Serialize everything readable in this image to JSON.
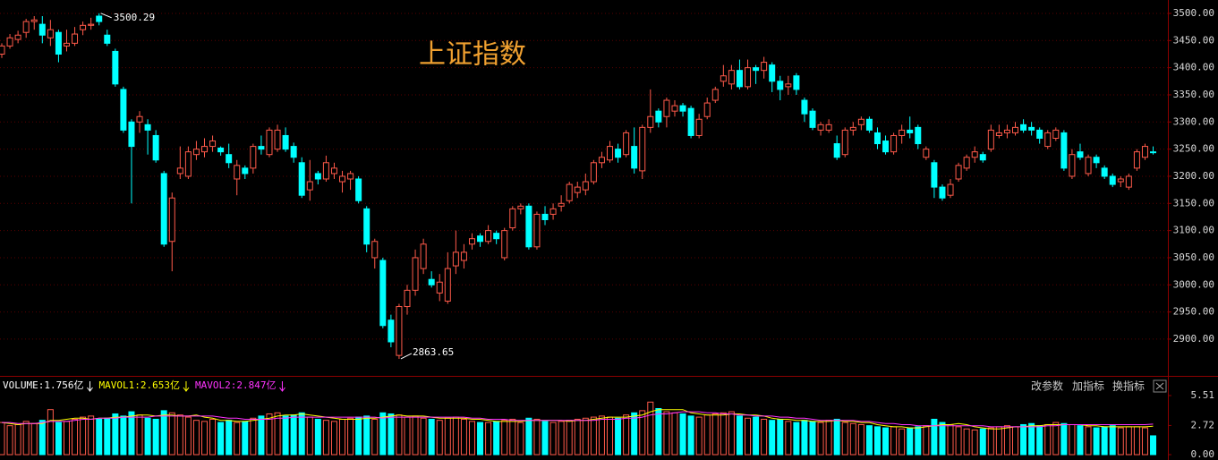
{
  "chart_data": [
    {
      "type": "candlestick",
      "title": "上证指数",
      "up_color": "#ff5a4a",
      "down_color": "#00ffff",
      "open": [
        3425,
        3440,
        3452,
        3465,
        3485,
        3480,
        3455,
        3465,
        3440,
        3445,
        3470,
        3478,
        3495,
        3460,
        3430,
        3360,
        3300,
        3300,
        3295,
        3275,
        3205,
        3080,
        3205,
        3200,
        3240,
        3245,
        3255,
        3252,
        3240,
        3195,
        3215,
        3215,
        3255,
        3240,
        3250,
        3275,
        3255,
        3225,
        3175,
        3205,
        3195,
        3205,
        3190,
        3195,
        3195,
        3140,
        3050,
        3045,
        2935,
        2870,
        2960,
        2990,
        3030,
        3010,
        2985,
        2970,
        3035,
        3045,
        3075,
        3090,
        3080,
        3095,
        3050,
        3105,
        3140,
        3145,
        3070,
        3130,
        3130,
        3145,
        3155,
        3170,
        3175,
        3190,
        3225,
        3230,
        3250,
        3240,
        3255,
        3210,
        3290,
        3320,
        3310,
        3320,
        3330,
        3325,
        3275,
        3310,
        3340,
        3375,
        3370,
        3395,
        3365,
        3400,
        3395,
        3405,
        3375,
        3365,
        3385,
        3340,
        3320,
        3285,
        3285,
        3260,
        3240,
        3285,
        3295,
        3305,
        3280,
        3265,
        3245,
        3275,
        3285,
        3290,
        3235,
        3225,
        3180,
        3165,
        3195,
        3215,
        3235,
        3240,
        3250,
        3275,
        3280,
        3280,
        3295,
        3290,
        3285,
        3255,
        3270,
        3280,
        3200,
        3245,
        3205,
        3235,
        3215,
        3200,
        3190,
        3180,
        3215,
        3235,
        3245
      ],
      "high": [
        3445,
        3462,
        3468,
        3490,
        3495,
        3495,
        3488,
        3470,
        3470,
        3475,
        3485,
        3492,
        3500.29,
        3470,
        3435,
        3365,
        3305,
        3320,
        3305,
        3285,
        3210,
        3170,
        3255,
        3255,
        3265,
        3270,
        3275,
        3255,
        3260,
        3230,
        3220,
        3260,
        3275,
        3290,
        3295,
        3290,
        3262,
        3235,
        3230,
        3210,
        3238,
        3225,
        3210,
        3210,
        3200,
        3145,
        3085,
        3050,
        2945,
        2965,
        3000,
        3065,
        3085,
        3025,
        3020,
        3060,
        3100,
        3075,
        3095,
        3095,
        3110,
        3100,
        3105,
        3145,
        3150,
        3150,
        3135,
        3145,
        3150,
        3165,
        3190,
        3190,
        3205,
        3230,
        3245,
        3265,
        3260,
        3285,
        3290,
        3295,
        3360,
        3325,
        3345,
        3340,
        3335,
        3330,
        3315,
        3345,
        3365,
        3405,
        3405,
        3415,
        3415,
        3405,
        3420,
        3410,
        3385,
        3385,
        3390,
        3345,
        3325,
        3300,
        3305,
        3275,
        3290,
        3300,
        3310,
        3310,
        3290,
        3275,
        3280,
        3295,
        3310,
        3295,
        3255,
        3230,
        3185,
        3195,
        3225,
        3240,
        3255,
        3245,
        3295,
        3295,
        3295,
        3300,
        3305,
        3300,
        3290,
        3285,
        3290,
        3285,
        3250,
        3260,
        3240,
        3240,
        3220,
        3205,
        3200,
        3205,
        3250,
        3260,
        3255
      ],
      "low": [
        3418,
        3435,
        3445,
        3455,
        3470,
        3445,
        3440,
        3410,
        3430,
        3440,
        3460,
        3470,
        3478,
        3440,
        3365,
        3280,
        3150,
        3280,
        3240,
        3225,
        3070,
        3025,
        3195,
        3195,
        3230,
        3235,
        3245,
        3238,
        3215,
        3165,
        3195,
        3205,
        3240,
        3235,
        3245,
        3245,
        3225,
        3160,
        3155,
        3185,
        3190,
        3195,
        3170,
        3175,
        3150,
        3060,
        3030,
        2920,
        2885,
        2863.65,
        2945,
        2980,
        3020,
        2995,
        2970,
        2965,
        3020,
        3030,
        3065,
        3070,
        3075,
        3075,
        3045,
        3100,
        3130,
        3065,
        3065,
        3110,
        3120,
        3135,
        3150,
        3160,
        3165,
        3185,
        3215,
        3225,
        3225,
        3235,
        3205,
        3195,
        3280,
        3290,
        3290,
        3310,
        3310,
        3270,
        3270,
        3305,
        3335,
        3365,
        3360,
        3360,
        3360,
        3370,
        3380,
        3355,
        3340,
        3350,
        3350,
        3300,
        3285,
        3275,
        3280,
        3230,
        3235,
        3275,
        3285,
        3280,
        3250,
        3240,
        3240,
        3260,
        3270,
        3250,
        3230,
        3160,
        3155,
        3160,
        3190,
        3210,
        3225,
        3225,
        3245,
        3270,
        3270,
        3275,
        3280,
        3275,
        3260,
        3250,
        3265,
        3210,
        3195,
        3230,
        3200,
        3215,
        3195,
        3180,
        3180,
        3175,
        3210,
        3230,
        3240
      ],
      "close": [
        3440,
        3455,
        3460,
        3485,
        3488,
        3460,
        3470,
        3425,
        3445,
        3462,
        3478,
        3480,
        3485,
        3445,
        3370,
        3285,
        3255,
        3310,
        3285,
        3230,
        3075,
        3160,
        3215,
        3245,
        3250,
        3255,
        3265,
        3245,
        3225,
        3220,
        3205,
        3255,
        3250,
        3285,
        3285,
        3250,
        3235,
        3165,
        3190,
        3195,
        3225,
        3215,
        3200,
        3205,
        3155,
        3075,
        3080,
        2925,
        2895,
        2960,
        2990,
        3050,
        3075,
        3000,
        3005,
        3030,
        3060,
        3060,
        3085,
        3080,
        3100,
        3085,
        3100,
        3140,
        3145,
        3070,
        3130,
        3120,
        3140,
        3150,
        3185,
        3180,
        3190,
        3225,
        3235,
        3255,
        3235,
        3280,
        3215,
        3290,
        3310,
        3300,
        3340,
        3330,
        3320,
        3275,
        3305,
        3335,
        3360,
        3385,
        3395,
        3365,
        3400,
        3395,
        3410,
        3375,
        3360,
        3370,
        3360,
        3315,
        3290,
        3295,
        3295,
        3235,
        3285,
        3290,
        3305,
        3285,
        3260,
        3245,
        3275,
        3285,
        3280,
        3260,
        3250,
        3180,
        3160,
        3185,
        3220,
        3235,
        3245,
        3230,
        3285,
        3280,
        3285,
        3290,
        3285,
        3285,
        3270,
        3280,
        3285,
        3215,
        3240,
        3235,
        3235,
        3225,
        3200,
        3185,
        3195,
        3200,
        3245,
        3255,
        3245
      ],
      "ylim": [
        2835.6,
        3524.7
      ],
      "yticks": [
        {
          "value": 2900,
          "label": "2900.00"
        },
        {
          "value": 2950,
          "label": "2950.00"
        },
        {
          "value": 3000,
          "label": "3000.00"
        },
        {
          "value": 3050,
          "label": "3050.00"
        },
        {
          "value": 3100,
          "label": "3100.00"
        },
        {
          "value": 3150,
          "label": "3150.00"
        },
        {
          "value": 3200,
          "label": "3200.00"
        },
        {
          "value": 3250,
          "label": "3250.00"
        },
        {
          "value": 3300,
          "label": "3300.00"
        },
        {
          "value": 3350,
          "label": "3350.00"
        },
        {
          "value": 3400,
          "label": "3400.00"
        },
        {
          "value": 3450,
          "label": "3450.00"
        },
        {
          "value": 3500,
          "label": "3500.00"
        }
      ],
      "grid": true
    },
    {
      "type": "volume",
      "indicator_labels": [
        {
          "text": "VOLUME:1.756亿",
          "color": "#ffffff"
        },
        {
          "text": "MAVOL1:2.653亿",
          "color": "#ffff00"
        },
        {
          "text": "MAVOL2:2.847亿",
          "color": "#ff33ff"
        }
      ],
      "toolbar": [
        "改参数",
        "加指标",
        "换指标"
      ],
      "values": [
        3.0,
        2.7,
        2.8,
        3.1,
        2.9,
        3.2,
        4.2,
        3.0,
        3.1,
        3.3,
        3.5,
        3.6,
        3.3,
        3.4,
        3.8,
        3.6,
        4.0,
        3.7,
        3.4,
        3.3,
        4.1,
        3.9,
        3.7,
        3.5,
        3.2,
        3.1,
        3.3,
        3.0,
        3.2,
        3.0,
        3.1,
        3.4,
        3.6,
        3.8,
        3.9,
        3.6,
        3.7,
        3.9,
        3.5,
        3.3,
        3.2,
        3.1,
        3.3,
        3.4,
        3.5,
        3.6,
        3.3,
        3.9,
        3.8,
        3.7,
        3.5,
        3.6,
        3.4,
        3.3,
        3.2,
        3.4,
        3.5,
        3.3,
        3.1,
        3.0,
        3.0,
        3.1,
        3.2,
        3.3,
        3.0,
        3.4,
        3.3,
        3.1,
        3.0,
        3.1,
        3.2,
        3.3,
        3.4,
        3.5,
        3.6,
        3.5,
        3.4,
        3.7,
        3.9,
        4.1,
        4.9,
        4.3,
        4.0,
        3.9,
        3.8,
        3.6,
        3.5,
        3.7,
        3.8,
        3.9,
        4.0,
        3.6,
        3.4,
        3.5,
        3.3,
        3.2,
        3.3,
        3.1,
        3.0,
        3.2,
        3.1,
        3.0,
        3.2,
        3.3,
        3.0,
        2.9,
        2.8,
        2.7,
        2.6,
        2.5,
        2.6,
        2.4,
        2.5,
        2.6,
        2.7,
        3.3,
        3.0,
        2.8,
        2.6,
        2.4,
        2.3,
        2.4,
        2.5,
        2.6,
        2.7,
        2.6,
        2.8,
        2.9,
        2.7,
        2.8,
        3.0,
        2.9,
        2.8,
        2.7,
        2.6,
        2.5,
        2.6,
        2.7,
        2.5,
        2.6,
        2.6,
        2.5,
        1.756
      ],
      "series": [
        {
          "color": "#ffff00",
          "values": [
            3.0,
            2.9,
            2.8,
            2.9,
            2.9,
            2.9,
            3.2,
            3.2,
            3.3,
            3.4,
            3.4,
            3.3,
            3.4,
            3.4,
            3.5,
            3.5,
            3.6,
            3.7,
            3.7,
            3.6,
            3.7,
            3.7,
            3.6,
            3.6,
            3.7,
            3.5,
            3.4,
            3.2,
            3.2,
            3.1,
            3.1,
            3.2,
            3.3,
            3.4,
            3.6,
            3.7,
            3.7,
            3.8,
            3.7,
            3.6,
            3.5,
            3.4,
            3.3,
            3.3,
            3.3,
            3.4,
            3.4,
            3.5,
            3.6,
            3.7,
            3.6,
            3.6,
            3.6,
            3.5,
            3.4,
            3.4,
            3.4,
            3.4,
            3.3,
            3.3,
            3.2,
            3.1,
            3.1,
            3.1,
            3.1,
            3.2,
            3.2,
            3.2,
            3.2,
            3.2,
            3.1,
            3.2,
            3.2,
            3.3,
            3.4,
            3.5,
            3.5,
            3.5,
            3.6,
            3.7,
            4.0,
            4.2,
            4.2,
            4.2,
            4.2,
            3.9,
            3.8,
            3.7,
            3.7,
            3.7,
            3.8,
            3.8,
            3.7,
            3.7,
            3.6,
            3.4,
            3.3,
            3.3,
            3.2,
            3.2,
            3.1,
            3.1,
            3.1,
            3.2,
            3.1,
            3.1,
            3.0,
            3.0,
            2.8,
            2.7,
            2.6,
            2.6,
            2.5,
            2.5,
            2.6,
            2.7,
            2.8,
            2.8,
            2.9,
            2.8,
            2.6,
            2.5,
            2.4,
            2.4,
            2.5,
            2.6,
            2.6,
            2.7,
            2.7,
            2.8,
            2.8,
            2.8,
            2.8,
            2.8,
            2.7,
            2.7,
            2.6,
            2.6,
            2.6,
            2.6,
            2.6,
            2.6,
            2.653
          ]
        },
        {
          "color": "#ff33ff",
          "values": [
            3.0,
            3.0,
            2.9,
            2.9,
            2.9,
            3.0,
            3.1,
            3.1,
            3.1,
            3.2,
            3.3,
            3.3,
            3.4,
            3.4,
            3.4,
            3.5,
            3.5,
            3.5,
            3.5,
            3.6,
            3.6,
            3.6,
            3.6,
            3.6,
            3.6,
            3.6,
            3.6,
            3.5,
            3.4,
            3.4,
            3.3,
            3.3,
            3.3,
            3.3,
            3.4,
            3.4,
            3.5,
            3.5,
            3.5,
            3.5,
            3.5,
            3.5,
            3.5,
            3.5,
            3.5,
            3.5,
            3.5,
            3.4,
            3.5,
            3.5,
            3.5,
            3.5,
            3.5,
            3.5,
            3.5,
            3.5,
            3.5,
            3.5,
            3.4,
            3.4,
            3.3,
            3.3,
            3.3,
            3.2,
            3.2,
            3.2,
            3.2,
            3.2,
            3.2,
            3.2,
            3.2,
            3.2,
            3.2,
            3.2,
            3.3,
            3.3,
            3.3,
            3.4,
            3.4,
            3.5,
            3.7,
            3.8,
            3.8,
            3.9,
            4.0,
            4.0,
            4.0,
            3.9,
            3.9,
            3.8,
            3.8,
            3.7,
            3.7,
            3.6,
            3.6,
            3.6,
            3.5,
            3.5,
            3.4,
            3.4,
            3.3,
            3.2,
            3.2,
            3.2,
            3.2,
            3.2,
            3.1,
            3.1,
            3.0,
            2.9,
            2.9,
            2.8,
            2.8,
            2.7,
            2.7,
            2.7,
            2.7,
            2.7,
            2.7,
            2.7,
            2.7,
            2.7,
            2.6,
            2.6,
            2.6,
            2.6,
            2.6,
            2.6,
            2.6,
            2.7,
            2.7,
            2.8,
            2.8,
            2.8,
            2.8,
            2.8,
            2.8,
            2.8,
            2.8,
            2.8,
            2.8,
            2.8,
            2.847
          ]
        }
      ],
      "ylim": [
        0,
        5.51
      ],
      "yticks": [
        {
          "value": 0,
          "label": "0.00"
        },
        2.72,
        5.51
      ]
    }
  ]
}
